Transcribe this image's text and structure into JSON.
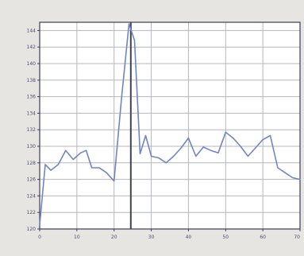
{
  "chart_data": {
    "type": "line",
    "title": "",
    "xlabel": "",
    "ylabel": "",
    "xlim": [
      0,
      70
    ],
    "ylim": [
      120,
      145
    ],
    "x_ticks": [
      0,
      10,
      20,
      30,
      40,
      50,
      60,
      70
    ],
    "y_ticks": [
      120,
      122,
      124,
      126,
      128,
      130,
      132,
      134,
      136,
      138,
      140,
      142,
      144
    ],
    "x_tick_labels": [
      "0",
      "10",
      "20",
      "30",
      "40",
      "50",
      "60",
      "70"
    ],
    "y_tick_labels": [
      "120",
      "122",
      "124",
      "126",
      "128",
      "130",
      "132",
      "134",
      "136",
      "138",
      "140",
      "142",
      "144"
    ],
    "grid": true,
    "vertical_marker_x": 24.5,
    "colors": {
      "line": "#6f86c2",
      "grid": "#b4b7bf",
      "axis": "#3b3e58",
      "marker": "#3f4154",
      "plot_background": "#ffffff",
      "page_background": "#e7e5e1"
    },
    "series": [
      {
        "x": [
          0,
          1.5,
          3,
          5,
          7,
          9,
          11,
          12.5,
          14,
          16,
          18,
          20,
          22,
          24,
          25.5,
          27,
          28.5,
          30,
          32,
          34,
          36,
          38,
          40,
          42,
          44,
          46,
          48,
          50,
          52,
          54,
          56,
          58,
          60,
          62,
          64,
          66,
          68,
          70
        ],
        "y": [
          120.5,
          127.8,
          127.1,
          127.8,
          129.5,
          128.4,
          129.2,
          129.5,
          127.4,
          127.4,
          126.8,
          125.8,
          135.8,
          144.8,
          142.8,
          129.1,
          131.3,
          128.8,
          128.6,
          128.0,
          128.8,
          129.8,
          131.0,
          128.8,
          129.9,
          129.5,
          129.2,
          131.7,
          131.0,
          130.0,
          128.8,
          129.8,
          130.8,
          131.3,
          127.4,
          126.8,
          126.2,
          126.0
        ]
      }
    ]
  }
}
